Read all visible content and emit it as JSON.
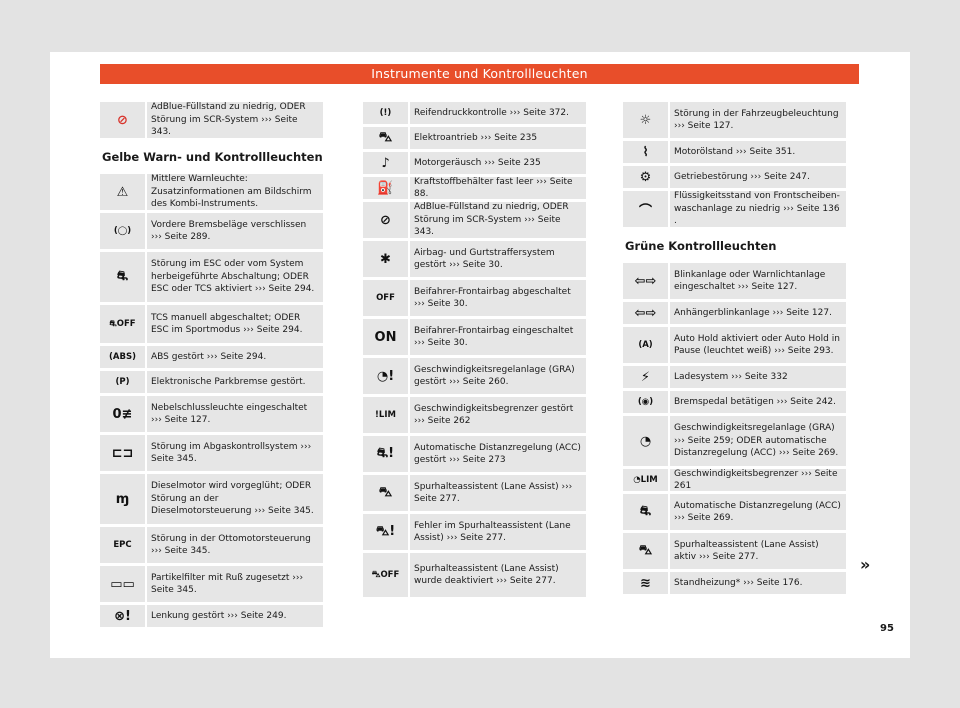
{
  "header": {
    "title": "Instrumente und Kontrollleuchten"
  },
  "page_number": "95",
  "continue_mark": "»",
  "col1": {
    "top_rows": [
      {
        "icon": "adblue-nozzle-icon",
        "glyph": "⊘",
        "red": true,
        "h": 36,
        "text": "AdBlue-Füllstand zu niedrig, ODER Stö­rung im SCR-System ››› Seite 343."
      }
    ],
    "heading": "Gelbe Warn- und Kontrollleuchten",
    "rows": [
      {
        "icon": "warning-triangle-icon",
        "glyph": "⚠",
        "h": 36,
        "text": "Mittlere Warnleuchte: Zusatzinformatio­nen am Bildschirm des Kombi-Instruments."
      },
      {
        "icon": "brake-pads-icon",
        "glyph": "(◯)",
        "h": 36,
        "text": "Vordere Bremsbeläge verschlissen ››› Sei­te 289."
      },
      {
        "icon": "esc-car-icon",
        "glyph": "⛐",
        "h": 50,
        "text": "Störung im ESC oder vom System herbei­geführte Abschaltung; ODER ESC oder TCS aktiviert ››› Seite 294."
      },
      {
        "icon": "tcs-off-icon",
        "glyph": "⛐OFF",
        "h": 38,
        "text": "TCS manuell abgeschaltet; ODER ESC im Sportmodus ››› Seite 294."
      },
      {
        "icon": "abs-icon",
        "glyph": "(ABS)",
        "h": 22,
        "text": "ABS gestört ››› Seite 294."
      },
      {
        "icon": "parking-brake-icon",
        "glyph": "(P)",
        "h": 22,
        "text": "Elektronische Parkbremse gestört."
      },
      {
        "icon": "rear-fog-icon",
        "glyph": "0≢",
        "h": 36,
        "text": "Nebelschlussleuchte eingeschaltet ››› Seite 127."
      },
      {
        "icon": "engine-check-icon",
        "glyph": "⊏⊐",
        "h": 36,
        "text": "Störung im Abgaskontrollsystem ››› Sei­te 345."
      },
      {
        "icon": "glow-plug-icon",
        "glyph": "ɱ",
        "h": 50,
        "text": "Dieselmotor wird vorgeglüht; ODER Stö­rung an der Dieselmotorsteuerung ››› Sei­te 345."
      },
      {
        "icon": "epc-icon",
        "glyph": "EPC",
        "h": 36,
        "text": "Störung in der Ottomotorsteuerung ››› Seite 345."
      },
      {
        "icon": "particle-filter-icon",
        "glyph": "▭▭",
        "h": 36,
        "text": "Partikelfilter mit Ruß zugesetzt ››› Sei­te 345."
      },
      {
        "icon": "steering-fault-icon",
        "glyph": "⊗!",
        "h": 22,
        "text": "Lenkung gestört ››› Seite 249."
      }
    ]
  },
  "col2": {
    "rows": [
      {
        "icon": "tire-pressure-icon",
        "glyph": "(!)",
        "h": 22,
        "text": "Reifendruckkontrolle ››› Seite 372."
      },
      {
        "icon": "electric-drive-icon",
        "glyph": "⛍",
        "h": 22,
        "text": "Elektroantrieb ››› Seite 235"
      },
      {
        "icon": "engine-sound-icon",
        "glyph": "♪",
        "h": 22,
        "text": "Motorgeräusch ››› Seite 235"
      },
      {
        "icon": "fuel-tank-icon",
        "glyph": "⛽",
        "h": 22,
        "text": "Kraftstoffbehälter fast leer ››› Seite 88."
      },
      {
        "icon": "adblue-nozzle-icon",
        "glyph": "⊘",
        "h": 36,
        "text": "AdBlue-Füllstand zu niedrig, ODER Stö­rung im SCR-System ››› Seite 343."
      },
      {
        "icon": "airbag-icon",
        "glyph": "✱",
        "h": 36,
        "text": "Airbag- und Gurtstraffersystem gestört ››› Seite 30."
      },
      {
        "icon": "passenger-airbag-off-icon",
        "glyph": "OFF",
        "h": 36,
        "text": "Beifahrer-Frontairbag abgeschaltet ››› Seite 30."
      },
      {
        "icon": "passenger-airbag-on-icon",
        "glyph": "ON",
        "h": 36,
        "text": "Beifahrer-Frontairbag eingeschaltet ››› Seite 30."
      },
      {
        "icon": "cruise-control-fault-icon",
        "glyph": "◔!",
        "h": 36,
        "text": "Geschwindigkeitsregelanlage (GRA) ge­stört ››› Seite 260."
      },
      {
        "icon": "speed-limiter-fault-icon",
        "glyph": "!LIM",
        "h": 36,
        "text": "Geschwindigkeitsbegrenzer gestört ››› Seite 262"
      },
      {
        "icon": "acc-fault-icon",
        "glyph": "⛐!",
        "h": 36,
        "text": "Automatische Distanzregelung (ACC) ge­stört ››› Seite 273"
      },
      {
        "icon": "lane-assist-icon",
        "glyph": "⛍",
        "h": 36,
        "text": "Spurhalteassistent (Lane Assist) ››› Sei­te 277."
      },
      {
        "icon": "lane-assist-fault-icon",
        "glyph": "⛍!",
        "h": 36,
        "text": "Fehler im Spurhalteassistent (Lane Assist) ››› Seite 277."
      },
      {
        "icon": "lane-assist-off-icon",
        "glyph": "⛍OFF",
        "h": 44,
        "text": "Spurhalteassistent (Lane Assist) wurde deaktiviert ››› Seite 277."
      }
    ]
  },
  "col3": {
    "top_rows": [
      {
        "icon": "lighting-fault-icon",
        "glyph": "☼",
        "h": 36,
        "text": "Störung in der Fahrzeugbeleuchtung ››› Seite 127."
      },
      {
        "icon": "oil-level-icon",
        "glyph": "⌇",
        "h": 22,
        "text": "Motorölstand ››› Seite 351."
      },
      {
        "icon": "gearbox-fault-icon",
        "glyph": "⚙",
        "h": 22,
        "text": "Getriebestörung ››› Seite 247."
      },
      {
        "icon": "washer-fluid-icon",
        "glyph": "⌒",
        "h": 36,
        "text": "Flüssigkeitsstand von Frontscheiben­waschanlage zu niedrig ››› Seite 136 ."
      }
    ],
    "heading": "Grüne Kontrollleuchten",
    "rows": [
      {
        "icon": "turn-signal-icon",
        "glyph": "⇦⇨",
        "h": 36,
        "text": "Blinkanlage oder Warnlichtanlage einge­schaltet ››› Seite 127."
      },
      {
        "icon": "trailer-signal-icon",
        "glyph": "⇦⇨",
        "h": 22,
        "text": "Anhängerblinkanlage ››› Seite 127."
      },
      {
        "icon": "auto-hold-icon",
        "glyph": "(A)",
        "h": 36,
        "text": "Auto Hold aktiviert oder Auto Hold in Pause (leuchtet weiß) ››› Seite 293."
      },
      {
        "icon": "charging-icon",
        "glyph": "⚡",
        "h": 22,
        "text": "Ladesystem ››› Seite 332"
      },
      {
        "icon": "brake-pedal-icon",
        "glyph": "(◉)",
        "h": 22,
        "text": "Bremspedal betätigen ››› Seite 242."
      },
      {
        "icon": "cruise-control-icon",
        "glyph": "◔",
        "h": 50,
        "text": "Geschwindigkeitsregelanlage (GRA) ››› Seite 259; ODER automatische Dis­tanzregelung (ACC) ››› Seite 269."
      },
      {
        "icon": "speed-limiter-icon",
        "glyph": "◔LIM",
        "h": 22,
        "text": "Geschwindigkeitsbegrenzer ››› Seite 261"
      },
      {
        "icon": "acc-icon",
        "glyph": "⛐",
        "h": 36,
        "text": "Automatische Distanzregelung (ACC) ››› Seite 269."
      },
      {
        "icon": "lane-assist-active-icon",
        "glyph": "⛍",
        "h": 36,
        "text": "Spurhalteassistent (Lane Assist) aktiv ››› Seite 277."
      },
      {
        "icon": "parking-heater-icon",
        "glyph": "≋",
        "h": 22,
        "text": "Standheizung* ››› Seite 176."
      }
    ]
  }
}
